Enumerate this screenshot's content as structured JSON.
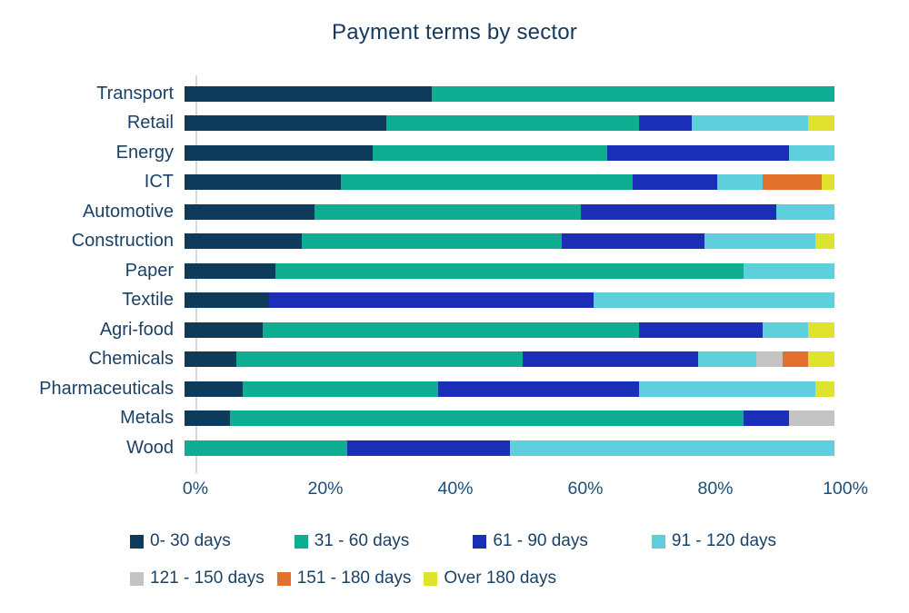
{
  "title": "Payment terms by sector",
  "colors": {
    "title_text": "#143a60",
    "label_text": "#1b4166",
    "tick_text": "#1b4e79",
    "axis_line": "#d9d9d9",
    "background": "#ffffff"
  },
  "chart_data": {
    "type": "bar",
    "orientation": "horizontal",
    "stacked": true,
    "title": "Payment terms by sector",
    "xlabel": "",
    "ylabel": "",
    "xlim": [
      0,
      100
    ],
    "x_ticks": [
      "0%",
      "20%",
      "40%",
      "60%",
      "80%",
      "100%"
    ],
    "grid": false,
    "legend_position": "bottom",
    "categories": [
      "Transport",
      "Retail",
      "Energy",
      "ICT",
      "Automotive",
      "Construction",
      "Paper",
      "Textile",
      "Agri-food",
      "Chemicals",
      "Pharmaceuticals",
      "Metals",
      "Wood"
    ],
    "series": [
      {
        "name": "0- 30 days",
        "color": "#0e3a5c",
        "values": [
          38,
          31,
          29,
          24,
          20,
          18,
          14,
          13,
          12,
          8,
          9,
          7,
          0
        ]
      },
      {
        "name": "31 - 60 days",
        "color": "#0fae92",
        "values": [
          62,
          39,
          36,
          45,
          41,
          40,
          72,
          0,
          58,
          44,
          30,
          79,
          25
        ]
      },
      {
        "name": "61 - 90 days",
        "color": "#1a2eb8",
        "values": [
          0,
          8,
          28,
          13,
          30,
          22,
          0,
          50,
          19,
          27,
          31,
          7,
          25
        ]
      },
      {
        "name": "91 - 120 days",
        "color": "#5ed0dd",
        "values": [
          0,
          18,
          7,
          7,
          9,
          17,
          14,
          37,
          7,
          9,
          27,
          0,
          50
        ]
      },
      {
        "name": "121 - 150 days",
        "color": "#c3c3c3",
        "values": [
          0,
          0,
          0,
          0,
          0,
          0,
          0,
          0,
          0,
          4,
          0,
          7,
          0
        ]
      },
      {
        "name": "151 - 180 days",
        "color": "#e2712e",
        "values": [
          0,
          0,
          0,
          9,
          0,
          0,
          0,
          0,
          0,
          4,
          0,
          0,
          0
        ]
      },
      {
        "name": "Over 180 days",
        "color": "#dfe32e",
        "values": [
          0,
          4,
          0,
          2,
          0,
          3,
          0,
          0,
          4,
          4,
          3,
          0,
          0
        ]
      }
    ]
  }
}
